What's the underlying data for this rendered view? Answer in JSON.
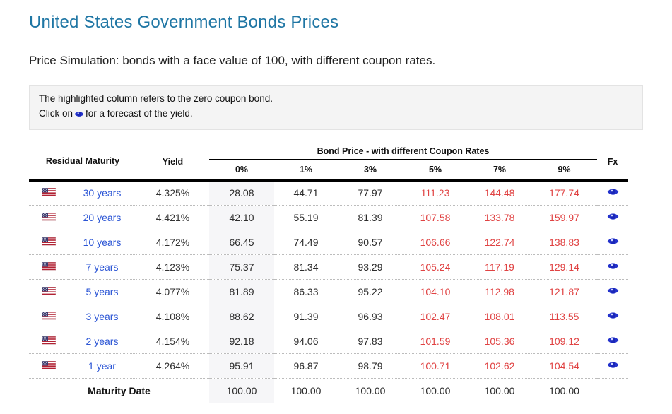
{
  "page": {
    "title": "United States Government Bonds Prices",
    "subtitle": "Price Simulation: bonds with a face value of 100, with different coupon rates.",
    "info": {
      "line1": "The highlighted column refers to the zero coupon bond.",
      "line2_prefix": "Click on",
      "line2_suffix": "for a forecast of the yield."
    }
  },
  "colors": {
    "title_blue": "#1f76a4",
    "link_blue": "#2b55d5",
    "above_par_red": "#e04343",
    "eye_blue": "#2433cc",
    "highlight_column_bg": "#f6f6f8"
  },
  "icons": {
    "flag": "us-flag-icon",
    "forecast": "eye-icon"
  },
  "table": {
    "group_header": "Bond Price - with different Coupon Rates",
    "headers": {
      "residual_maturity": "Residual Maturity",
      "yield": "Yield",
      "coupon_rates": [
        "0%",
        "1%",
        "3%",
        "5%",
        "7%",
        "9%"
      ],
      "fx": "Fx"
    },
    "rows": [
      {
        "country": "United States",
        "maturity": "30 years",
        "yield": "4.325%",
        "prices": [
          "28.08",
          "44.71",
          "77.97",
          "111.23",
          "144.48",
          "177.74"
        ]
      },
      {
        "country": "United States",
        "maturity": "20 years",
        "yield": "4.421%",
        "prices": [
          "42.10",
          "55.19",
          "81.39",
          "107.58",
          "133.78",
          "159.97"
        ]
      },
      {
        "country": "United States",
        "maturity": "10 years",
        "yield": "4.172%",
        "prices": [
          "66.45",
          "74.49",
          "90.57",
          "106.66",
          "122.74",
          "138.83"
        ]
      },
      {
        "country": "United States",
        "maturity": "7 years",
        "yield": "4.123%",
        "prices": [
          "75.37",
          "81.34",
          "93.29",
          "105.24",
          "117.19",
          "129.14"
        ]
      },
      {
        "country": "United States",
        "maturity": "5 years",
        "yield": "4.077%",
        "prices": [
          "81.89",
          "86.33",
          "95.22",
          "104.10",
          "112.98",
          "121.87"
        ]
      },
      {
        "country": "United States",
        "maturity": "3 years",
        "yield": "4.108%",
        "prices": [
          "88.62",
          "91.39",
          "96.93",
          "102.47",
          "108.01",
          "113.55"
        ]
      },
      {
        "country": "United States",
        "maturity": "2 years",
        "yield": "4.154%",
        "prices": [
          "92.18",
          "94.06",
          "97.83",
          "101.59",
          "105.36",
          "109.12"
        ]
      },
      {
        "country": "United States",
        "maturity": "1 year",
        "yield": "4.264%",
        "prices": [
          "95.91",
          "96.87",
          "98.79",
          "100.71",
          "102.62",
          "104.54"
        ]
      }
    ],
    "footer": {
      "label": "Maturity Date",
      "prices": [
        "100.00",
        "100.00",
        "100.00",
        "100.00",
        "100.00",
        "100.00"
      ]
    }
  }
}
